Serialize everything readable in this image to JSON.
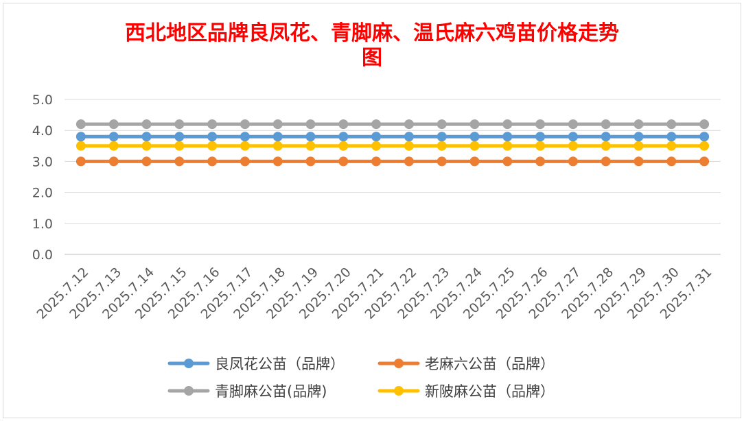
{
  "chart_data": {
    "type": "line",
    "title_line1": "西北地区品牌良凤花、青脚麻、温氏麻六鸡苗价格走势",
    "title_line2": "图",
    "title_color": "#ff0000",
    "categories": [
      "2025.7.12",
      "2025.7.13",
      "2025.7.14",
      "2025.7.15",
      "2025.7.16",
      "2025.7.17",
      "2025.7.18",
      "2025.7.19",
      "2025.7.20",
      "2025.7.21",
      "2025.7.22",
      "2025.7.23",
      "2025.7.24",
      "2025.7.25",
      "2025.7.26",
      "2025.7.27",
      "2025.7.28",
      "2025.7.29",
      "2025.7.30",
      "2025.7.31"
    ],
    "y_ticks": [
      "0.0",
      "1.0",
      "2.0",
      "3.0",
      "4.0",
      "5.0"
    ],
    "ylim": [
      0,
      5
    ],
    "grid": true,
    "legend_position": "bottom",
    "series": [
      {
        "name": "良凤花公苗（品牌）",
        "color": "#5b9bd5",
        "values": [
          3.8,
          3.8,
          3.8,
          3.8,
          3.8,
          3.8,
          3.8,
          3.8,
          3.8,
          3.8,
          3.8,
          3.8,
          3.8,
          3.8,
          3.8,
          3.8,
          3.8,
          3.8,
          3.8,
          3.8
        ]
      },
      {
        "name": "老麻六公苗（品牌）",
        "color": "#ed7d31",
        "values": [
          3.0,
          3.0,
          3.0,
          3.0,
          3.0,
          3.0,
          3.0,
          3.0,
          3.0,
          3.0,
          3.0,
          3.0,
          3.0,
          3.0,
          3.0,
          3.0,
          3.0,
          3.0,
          3.0,
          3.0
        ]
      },
      {
        "name": "青脚麻公苗(品牌)",
        "color": "#a5a5a5",
        "values": [
          4.2,
          4.2,
          4.2,
          4.2,
          4.2,
          4.2,
          4.2,
          4.2,
          4.2,
          4.2,
          4.2,
          4.2,
          4.2,
          4.2,
          4.2,
          4.2,
          4.2,
          4.2,
          4.2,
          4.2
        ]
      },
      {
        "name": "新陂麻公苗（品牌）",
        "color": "#ffc000",
        "values": [
          3.5,
          3.5,
          3.5,
          3.5,
          3.5,
          3.5,
          3.5,
          3.5,
          3.5,
          3.5,
          3.5,
          3.5,
          3.5,
          3.5,
          3.5,
          3.5,
          3.5,
          3.5,
          3.5,
          3.5
        ]
      }
    ]
  }
}
